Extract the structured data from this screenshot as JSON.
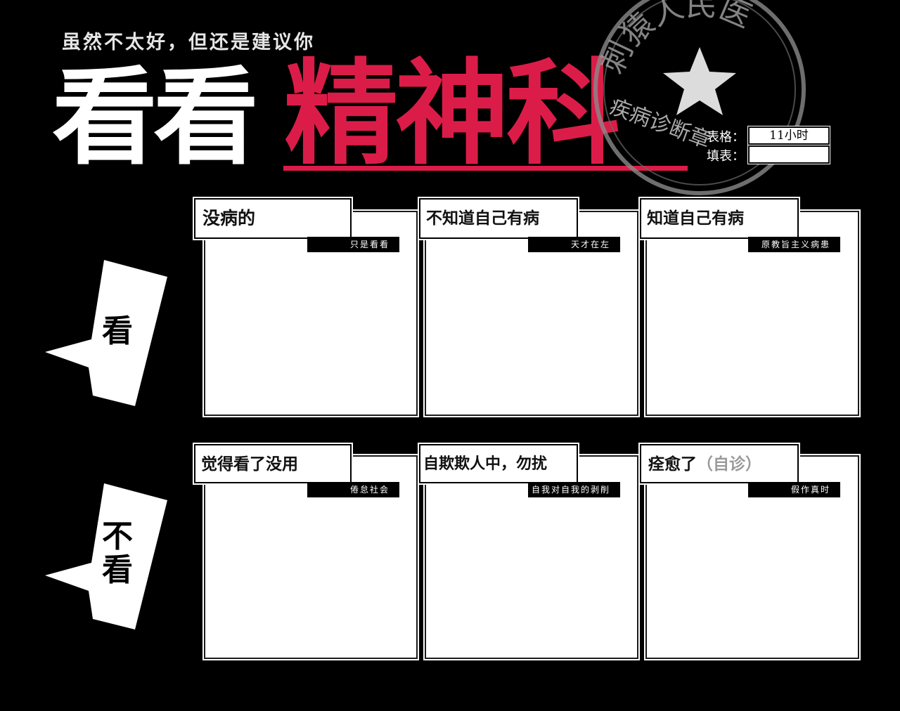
{
  "header": {
    "subtitle": "虽然不太好，但还是建议你",
    "title_white": "看看",
    "title_red": "精神科",
    "stamp_text": "刺猿人民医",
    "stamp_seal": "疾病诊断章",
    "meta": [
      {
        "label": "表格：",
        "value": "11小时"
      },
      {
        "label": "填表：",
        "value": ""
      }
    ]
  },
  "rows": [
    {
      "label": "看",
      "cells": [
        {
          "title": "没病的",
          "tag": "只是看看"
        },
        {
          "title": "不知道自己有病",
          "tag": "天才在左"
        },
        {
          "title": "知道自己有病",
          "tag": "原教旨主义病患"
        }
      ]
    },
    {
      "label_line1": "不",
      "label_line2": "看",
      "cells": [
        {
          "title": "觉得看了没用",
          "tag": "倦怠社会"
        },
        {
          "title": "自欺欺人中，勿扰",
          "tag": "自我对自我的剥削"
        },
        {
          "title": "痊愈了",
          "title_suffix": "（自诊）",
          "tag": "假作真时"
        }
      ]
    }
  ],
  "colors": {
    "accent": "#dc1c48",
    "background": "#000000",
    "panel": "#ffffff"
  }
}
